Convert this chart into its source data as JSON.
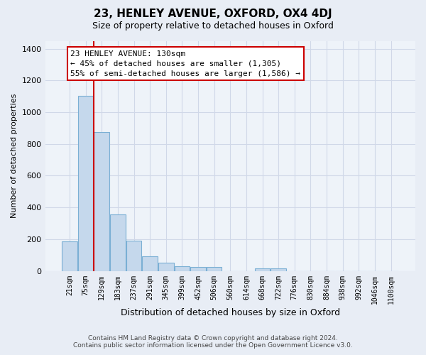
{
  "title": "23, HENLEY AVENUE, OXFORD, OX4 4DJ",
  "subtitle": "Size of property relative to detached houses in Oxford",
  "xlabel": "Distribution of detached houses by size in Oxford",
  "ylabel": "Number of detached properties",
  "bar_labels": [
    "21sqm",
    "75sqm",
    "129sqm",
    "183sqm",
    "237sqm",
    "291sqm",
    "345sqm",
    "399sqm",
    "452sqm",
    "506sqm",
    "560sqm",
    "614sqm",
    "668sqm",
    "722sqm",
    "776sqm",
    "830sqm",
    "884sqm",
    "938sqm",
    "992sqm",
    "1046sqm",
    "1100sqm"
  ],
  "bar_values": [
    185,
    1105,
    875,
    355,
    190,
    90,
    50,
    30,
    25,
    25,
    0,
    0,
    15,
    15,
    0,
    0,
    0,
    0,
    0,
    0,
    0
  ],
  "bar_color": "#c5d8ec",
  "bar_edge_color": "#7aafd4",
  "annotation_line1": "23 HENLEY AVENUE: 130sqm",
  "annotation_line2": "← 45% of detached houses are smaller (1,305)",
  "annotation_line3": "55% of semi-detached houses are larger (1,586) →",
  "annotation_box_facecolor": "#ffffff",
  "annotation_box_edgecolor": "#cc0000",
  "property_line_color": "#cc0000",
  "property_line_bar_idx": 2,
  "ylim": [
    0,
    1450
  ],
  "yticks": [
    0,
    200,
    400,
    600,
    800,
    1000,
    1200,
    1400
  ],
  "footnote_line1": "Contains HM Land Registry data © Crown copyright and database right 2024.",
  "footnote_line2": "Contains public sector information licensed under the Open Government Licence v3.0.",
  "fig_bg_color": "#e8edf5",
  "plot_bg_color": "#eef3f9",
  "grid_color": "#d0d8e8"
}
